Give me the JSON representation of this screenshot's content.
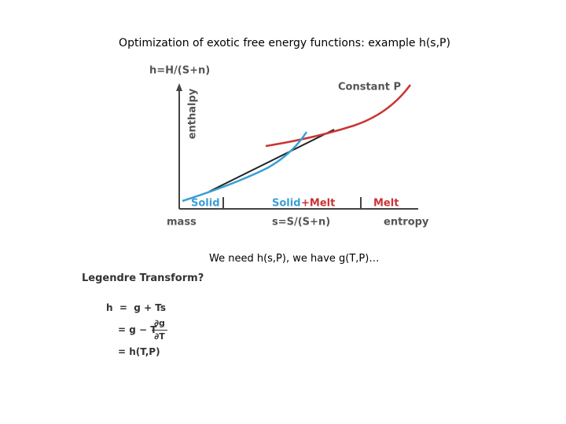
{
  "title": "Optimization of exotic free energy functions: example h(s,P)",
  "diagram": {
    "y_axis_title": "h=H/(S+n)",
    "y_axis_label": "enthalpy",
    "curve_label": "Constant P",
    "region_solid": "Solid",
    "region_mix_solid": "Solid",
    "region_mix_melt": "+Melt",
    "region_melt": "Melt",
    "x_left_label": "mass",
    "x_axis_title": "s=S/(S+n)",
    "x_right_label": "entropy"
  },
  "caption": "We need h(s,P), we have g(T,P)…",
  "legendre": {
    "title": "Legendre Transform?",
    "line1": "h  =  g + Ts",
    "line2": "= g − T",
    "numerator": "∂g",
    "denominator": "∂T",
    "line3": "= h(T,P)"
  }
}
